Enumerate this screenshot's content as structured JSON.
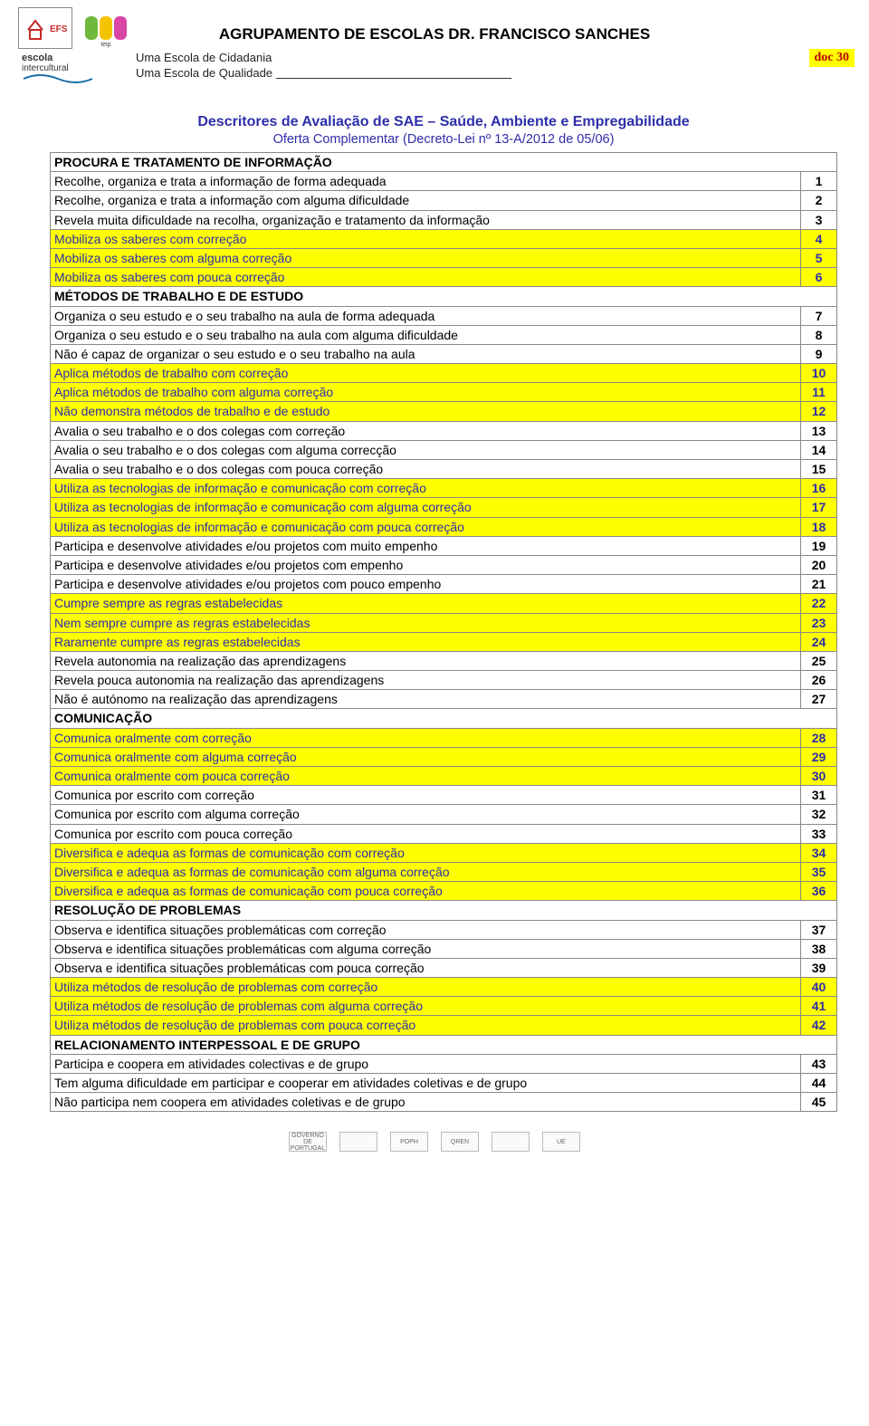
{
  "header": {
    "main_title": "AGRUPAMENTO DE ESCOLAS DR. FRANCISCO SANCHES",
    "subtitle1": "Uma Escola de Cidadania",
    "subtitle2": "Uma Escola de Qualidade",
    "doc_badge": "doc 30",
    "intercultural_brand": "escola",
    "intercultural_sub": "intercultural"
  },
  "doc": {
    "title": "Descritores de Avaliação de SAE – Saúde, Ambiente e Empregabilidade",
    "subtitle": "Oferta Complementar (Decreto-Lei nº 13-A/2012 de 05/06)"
  },
  "colors": {
    "highlight_bg": "#ffff00",
    "blue_text": "#2e2eaa",
    "border": "#888888",
    "badge_text": "#c00000"
  },
  "rows": [
    {
      "type": "section",
      "text": "PROCURA E TRATAMENTO DE INFORMAÇÃO"
    },
    {
      "text": "Recolhe, organiza e trata a informação de forma adequada",
      "num": "1"
    },
    {
      "text": "Recolhe, organiza e trata a informação com alguma dificuldade",
      "num": "2"
    },
    {
      "text": "Revela muita dificuldade na recolha, organização e tratamento da informação",
      "num": "3"
    },
    {
      "text": "Mobiliza os saberes com correção",
      "num": "4",
      "hl": true,
      "blue": true
    },
    {
      "text": "Mobiliza os saberes com alguma correção",
      "num": "5",
      "hl": true,
      "blue": true
    },
    {
      "text": "Mobiliza os saberes com pouca correção",
      "num": "6",
      "hl": true,
      "blue": true
    },
    {
      "type": "section",
      "text": "MÉTODOS DE TRABALHO E DE ESTUDO"
    },
    {
      "text": "Organiza o seu estudo e o seu trabalho na aula de forma adequada",
      "num": "7"
    },
    {
      "text": "Organiza o seu estudo e o seu trabalho na aula com alguma dificuldade",
      "num": "8"
    },
    {
      "text": "Não é capaz de organizar o seu estudo e o seu trabalho na aula",
      "num": "9"
    },
    {
      "text": "Aplica métodos de trabalho com correção",
      "num": "10",
      "hl": true,
      "blue": true
    },
    {
      "text": "Aplica métodos de trabalho com alguma correção",
      "num": "11",
      "hl": true,
      "blue": true
    },
    {
      "text": "Não demonstra métodos de trabalho e de estudo",
      "num": "12",
      "hl": true,
      "blue": true
    },
    {
      "text": "Avalia o seu trabalho e o dos colegas com correção",
      "num": "13"
    },
    {
      "text": "Avalia o seu trabalho e o dos colegas com alguma correcção",
      "num": "14"
    },
    {
      "text": "Avalia o seu trabalho e o dos colegas com pouca correção",
      "num": "15"
    },
    {
      "text": "Utiliza as tecnologias de informação e comunicação com correção",
      "num": "16",
      "hl": true,
      "blue": true
    },
    {
      "text": "Utiliza as tecnologias de informação e comunicação com alguma correção",
      "num": "17",
      "hl": true,
      "blue": true
    },
    {
      "text": "Utiliza as tecnologias de informação e comunicação com pouca correção",
      "num": "18",
      "hl": true,
      "blue": true
    },
    {
      "text": "Participa e desenvolve atividades e/ou projetos com muito empenho",
      "num": "19"
    },
    {
      "text": "Participa e desenvolve atividades e/ou projetos com empenho",
      "num": "20"
    },
    {
      "text": "Participa e desenvolve atividades e/ou projetos com pouco empenho",
      "num": "21"
    },
    {
      "text": "Cumpre sempre as regras estabelecidas",
      "num": "22",
      "hl": true,
      "blue": true
    },
    {
      "text": "Nem sempre cumpre as regras estabelecidas",
      "num": "23",
      "hl": true,
      "blue": true
    },
    {
      "text": "Raramente cumpre as regras estabelecidas",
      "num": "24",
      "hl": true,
      "blue": true
    },
    {
      "text": "Revela autonomia na realização das aprendizagens",
      "num": "25"
    },
    {
      "text": "Revela pouca autonomia na realização das aprendizagens",
      "num": "26"
    },
    {
      "text": "Não é autónomo na realização das aprendizagens",
      "num": "27"
    },
    {
      "type": "section",
      "text": "COMUNICAÇÃO"
    },
    {
      "text": "Comunica oralmente com correção",
      "num": "28",
      "hl": true,
      "blue": true
    },
    {
      "text": "Comunica oralmente com alguma correção",
      "num": "29",
      "hl": true,
      "blue": true
    },
    {
      "text": "Comunica oralmente com pouca correção",
      "num": "30",
      "hl": true,
      "blue": true
    },
    {
      "text": "Comunica por escrito com correção",
      "num": "31"
    },
    {
      "text": "Comunica por escrito com alguma correção",
      "num": "32"
    },
    {
      "text": "Comunica por escrito com pouca correção",
      "num": "33"
    },
    {
      "text": "Diversifica e adequa as formas de comunicação com correção",
      "num": "34",
      "hl": true,
      "blue": true
    },
    {
      "text": "Diversifica e adequa as formas de comunicação com alguma correção",
      "num": "35",
      "hl": true,
      "blue": true
    },
    {
      "text": "Diversifica e adequa as formas de comunicação com pouca correção",
      "num": "36",
      "hl": true,
      "blue": true
    },
    {
      "type": "section",
      "text": "RESOLUÇÃO DE PROBLEMAS"
    },
    {
      "text": "Observa e identifica situações problemáticas com correção",
      "num": "37"
    },
    {
      "text": "Observa e identifica situações problemáticas com alguma correção",
      "num": "38"
    },
    {
      "text": "Observa e identifica situações problemáticas com pouca correção",
      "num": "39"
    },
    {
      "text": "Utiliza métodos de resolução de problemas com correção",
      "num": "40",
      "hl": true,
      "blue": true
    },
    {
      "text": "Utiliza métodos de resolução de problemas com alguma correção",
      "num": "41",
      "hl": true,
      "blue": true
    },
    {
      "text": "Utiliza métodos de resolução de problemas com pouca correção",
      "num": "42",
      "hl": true,
      "blue": true
    },
    {
      "type": "section",
      "text": "RELACIONAMENTO INTERPESSOAL E DE GRUPO"
    },
    {
      "text": "Participa e coopera em atividades colectivas e de grupo",
      "num": "43"
    },
    {
      "text": "Tem alguma dificuldade em participar e cooperar em atividades coletivas e de grupo",
      "num": "44"
    },
    {
      "text": "Não participa nem coopera em atividades coletivas e de grupo",
      "num": "45"
    }
  ],
  "footer_logos": [
    "GOVERNO DE PORTUGAL",
    "",
    "POPH",
    "QREN",
    "",
    "UE"
  ]
}
